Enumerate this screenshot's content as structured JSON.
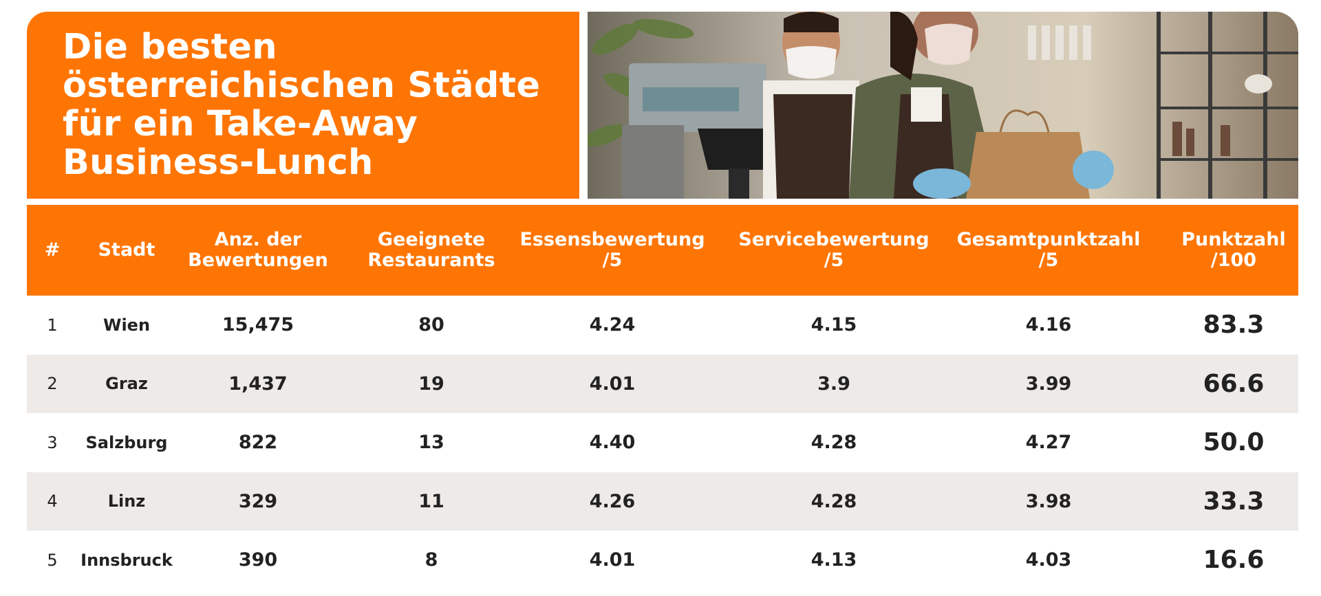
{
  "title": {
    "lines": [
      "Die besten",
      "österreichischen Städte",
      "für ein Take-Away",
      "Business-Lunch"
    ]
  },
  "photo": {
    "icon": "cafe-staff-photo"
  },
  "colors": {
    "accent": "#ff7503",
    "alt_row": "#edeae8",
    "text": "#222222"
  },
  "table": {
    "headers": [
      [
        "#"
      ],
      [
        "Stadt"
      ],
      [
        "Anz. der",
        "Bewertungen"
      ],
      [
        "Geeignete",
        "Restaurants"
      ],
      [
        "Essensbewertung",
        "/5"
      ],
      [
        "Servicebewertung",
        "/5"
      ],
      [
        "Gesamtpunktzahl",
        "/5"
      ],
      [
        "Punktzahl",
        "/100"
      ]
    ],
    "rows": [
      [
        "1",
        "Wien",
        "15,475",
        "80",
        "4.24",
        "4.15",
        "4.16",
        "83.3"
      ],
      [
        "2",
        "Graz",
        "1,437",
        "19",
        "4.01",
        "3.9",
        "3.99",
        "66.6"
      ],
      [
        "3",
        "Salzburg",
        "822",
        "13",
        "4.40",
        "4.28",
        "4.27",
        "50.0"
      ],
      [
        "4",
        "Linz",
        "329",
        "11",
        "4.26",
        "4.28",
        "3.98",
        "33.3"
      ],
      [
        "5",
        "Innsbruck",
        "390",
        "8",
        "4.01",
        "4.13",
        "4.03",
        "16.6"
      ]
    ]
  }
}
